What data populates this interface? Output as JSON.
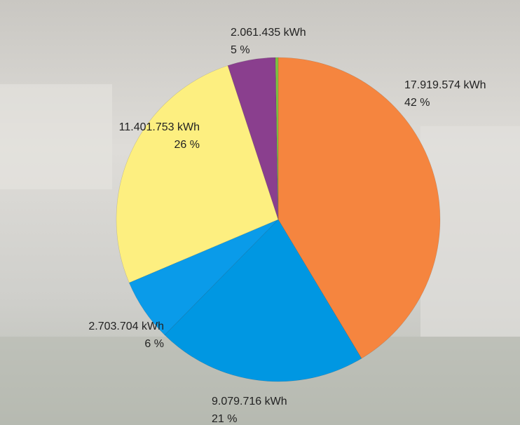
{
  "chart_data": {
    "type": "pie",
    "categories": [
      null,
      null,
      null,
      null,
      null,
      null
    ],
    "values": [
      17919574,
      9079716,
      2703704,
      11401753,
      2061435,
      120000
    ],
    "value_labels": [
      "17.919.574 kWh",
      "9.079.716 kWh",
      "2.703.704 kWh",
      "11.401.753 kWh",
      "2.061.435 kWh",
      null
    ],
    "percent_labels": [
      "42 %",
      "21 %",
      "6 %",
      "26 %",
      "5 %",
      null
    ],
    "colors": [
      "#f5853f",
      "#0097e2",
      "#0a9be9",
      "#fdef80",
      "#8a3f8e",
      "#7cc243"
    ]
  }
}
